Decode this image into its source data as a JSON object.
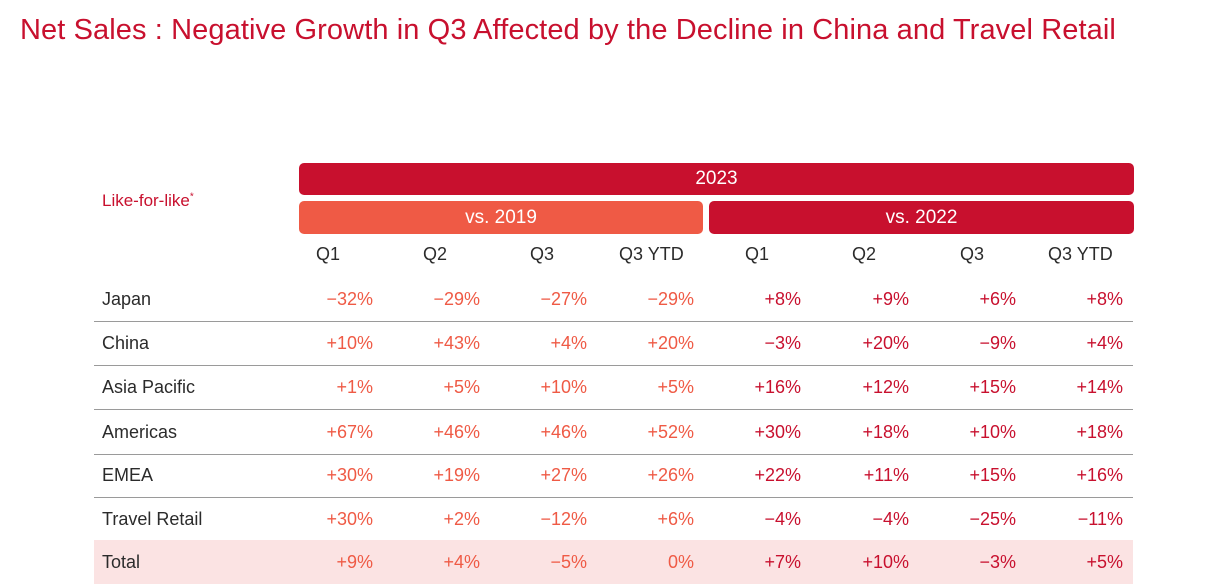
{
  "title": "Net Sales :  Negative Growth in Q3 Affected by the Decline in China and Travel Retail",
  "header": {
    "year": "2023",
    "group_2019": "vs. 2019",
    "group_2022": "vs. 2022",
    "row_header": "Like-for-like",
    "row_header_mark": "*",
    "columns": [
      "Q1",
      "Q2",
      "Q3",
      "Q3 YTD",
      "Q1",
      "Q2",
      "Q3",
      "Q3 YTD"
    ]
  },
  "rows": [
    {
      "label": "Japan",
      "vs2019": [
        "−32%",
        "−29%",
        "−27%",
        "−29%"
      ],
      "vs2022": [
        "+8%",
        "+9%",
        "+6%",
        "+8%"
      ]
    },
    {
      "label": "China",
      "vs2019": [
        "+10%",
        "+43%",
        "+4%",
        "+20%"
      ],
      "vs2022": [
        "−3%",
        "+20%",
        "−9%",
        "+4%"
      ]
    },
    {
      "label": "Asia Pacific",
      "vs2019": [
        "+1%",
        "+5%",
        "+10%",
        "+5%"
      ],
      "vs2022": [
        "+16%",
        "+12%",
        "+15%",
        "+14%"
      ]
    },
    {
      "label": "Americas",
      "vs2019": [
        "+67%",
        "+46%",
        "+46%",
        "+52%"
      ],
      "vs2022": [
        "+30%",
        "+18%",
        "+10%",
        "+18%"
      ]
    },
    {
      "label": "EMEA",
      "vs2019": [
        "+30%",
        "+19%",
        "+27%",
        "+26%"
      ],
      "vs2022": [
        "+22%",
        "+11%",
        "+15%",
        "+16%"
      ]
    },
    {
      "label": "Travel Retail",
      "vs2019": [
        "+30%",
        "+2%",
        "−12%",
        "+6%"
      ],
      "vs2022": [
        "−4%",
        "−4%",
        "−25%",
        "−11%"
      ]
    },
    {
      "label": "Total",
      "vs2019": [
        "+9%",
        "+4%",
        "−5%",
        "0%"
      ],
      "vs2022": [
        "+7%",
        "+10%",
        "−3%",
        "+5%"
      ]
    }
  ],
  "colors": {
    "primary": "#c8102e",
    "secondary": "#ef5a45",
    "total_bg": "#fbe3e3"
  }
}
